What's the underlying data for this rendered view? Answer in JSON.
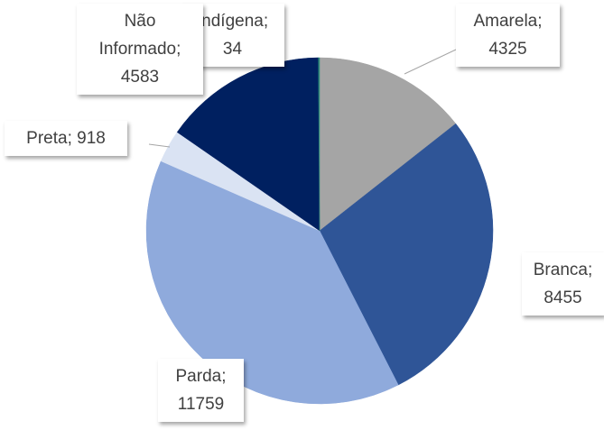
{
  "chart_data": {
    "type": "pie",
    "categories": [
      "Amarela",
      "Branca",
      "Parda",
      "Preta",
      "Não Informado",
      "Indígena"
    ],
    "values": [
      4325,
      8455,
      11759,
      918,
      4583,
      34
    ],
    "colors": [
      "#a5a5a5",
      "#2f5597",
      "#8faadc",
      "#dae3f3",
      "#002060",
      "#2e8b7a"
    ],
    "label_separator": ";"
  }
}
